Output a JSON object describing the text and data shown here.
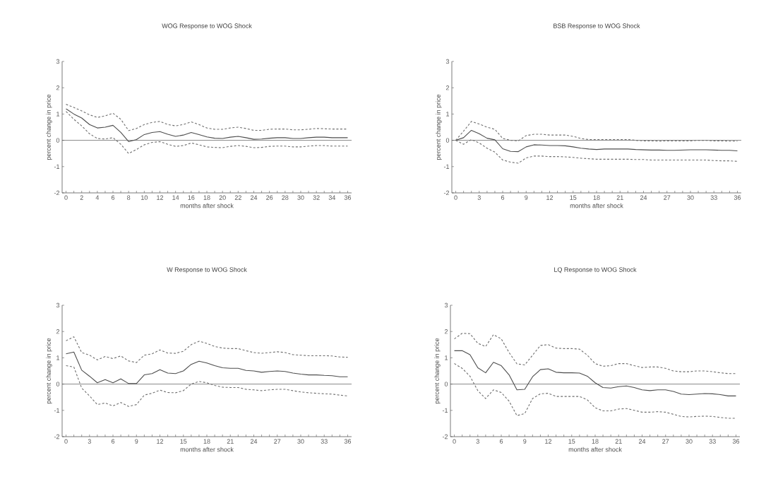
{
  "chart_data": [
    {
      "type": "line",
      "title": "WOG Response to WOG Shock",
      "xlabel": "months after shock",
      "ylabel": "percent change in price",
      "x": [
        0,
        1,
        2,
        3,
        4,
        5,
        6,
        7,
        8,
        9,
        10,
        11,
        12,
        13,
        14,
        15,
        16,
        17,
        18,
        19,
        20,
        21,
        22,
        23,
        24,
        25,
        26,
        27,
        28,
        29,
        30,
        31,
        32,
        33,
        34,
        35,
        36
      ],
      "xlim": [
        -0.5,
        36.5
      ],
      "ylim": [
        -2,
        3
      ],
      "yticks": [
        -2,
        -1,
        0,
        1,
        2,
        3
      ],
      "xticks": [
        0,
        {
          "value": 1,
          "label": null
        },
        2,
        {
          "value": 3,
          "label": null
        },
        4,
        {
          "value": 5,
          "label": null
        },
        6,
        {
          "value": 7,
          "label": null
        },
        8,
        {
          "value": 9,
          "label": null
        },
        10,
        {
          "value": 11,
          "label": null
        },
        12,
        {
          "value": 13,
          "label": null
        },
        14,
        {
          "value": 15,
          "label": null
        },
        16,
        {
          "value": 17,
          "label": null
        },
        18,
        {
          "value": 19,
          "label": null
        },
        20,
        {
          "value": 21,
          "label": null
        },
        22,
        {
          "value": 23,
          "label": null
        },
        24,
        {
          "value": 25,
          "label": null
        },
        26,
        {
          "value": 27,
          "label": null
        },
        28,
        {
          "value": 29,
          "label": null
        },
        30,
        {
          "value": 31,
          "label": null
        },
        32,
        {
          "value": 33,
          "label": null
        },
        34,
        {
          "value": 35,
          "label": null
        },
        36
      ],
      "marker": "none",
      "ref_lines": [
        {
          "axis": "y",
          "value": 0,
          "color": "#555555"
        }
      ],
      "series": [
        {
          "color": "#4d4d4d",
          "line_style": "solid",
          "values": [
            1.2,
            1.0,
            0.85,
            0.6,
            0.47,
            0.5,
            0.57,
            0.3,
            -0.05,
            0.03,
            0.22,
            0.3,
            0.33,
            0.23,
            0.15,
            0.2,
            0.3,
            0.22,
            0.13,
            0.08,
            0.07,
            0.12,
            0.15,
            0.1,
            0.04,
            0.05,
            0.08,
            0.1,
            0.1,
            0.07,
            0.07,
            0.1,
            0.12,
            0.12,
            0.1,
            0.1,
            0.1
          ]
        },
        {
          "color": "#6e6e6e",
          "line_style": "dashed",
          "values": [
            1.37,
            1.25,
            1.12,
            0.97,
            0.87,
            0.93,
            1.03,
            0.8,
            0.37,
            0.45,
            0.6,
            0.68,
            0.72,
            0.6,
            0.55,
            0.6,
            0.7,
            0.6,
            0.47,
            0.42,
            0.42,
            0.47,
            0.5,
            0.45,
            0.38,
            0.38,
            0.42,
            0.43,
            0.43,
            0.4,
            0.4,
            0.42,
            0.45,
            0.44,
            0.43,
            0.43,
            0.43
          ]
        },
        {
          "color": "#6e6e6e",
          "line_style": "dashed",
          "values": [
            1.1,
            0.8,
            0.55,
            0.25,
            0.07,
            0.05,
            0.1,
            -0.15,
            -0.5,
            -0.35,
            -0.17,
            -0.08,
            -0.05,
            -0.15,
            -0.23,
            -0.2,
            -0.1,
            -0.17,
            -0.25,
            -0.27,
            -0.28,
            -0.23,
            -0.2,
            -0.23,
            -0.28,
            -0.27,
            -0.23,
            -0.22,
            -0.22,
            -0.25,
            -0.25,
            -0.22,
            -0.2,
            -0.2,
            -0.22,
            -0.22,
            -0.22
          ]
        }
      ]
    },
    {
      "type": "line",
      "title": "BSB Response to WOG Shock",
      "xlabel": "months after shock",
      "ylabel": "percent change in price",
      "x": [
        0,
        1,
        2,
        3,
        4,
        5,
        6,
        7,
        8,
        9,
        10,
        11,
        12,
        13,
        14,
        15,
        16,
        17,
        18,
        19,
        20,
        21,
        22,
        23,
        24,
        25,
        26,
        27,
        28,
        29,
        30,
        31,
        32,
        33,
        34,
        35,
        36
      ],
      "xlim": [
        -0.5,
        36.5
      ],
      "ylim": [
        -2,
        3
      ],
      "yticks": [
        -2,
        -1,
        0,
        1,
        2,
        3
      ],
      "xticks": [
        0,
        {
          "value": 1,
          "label": null
        },
        {
          "value": 2,
          "label": null
        },
        3,
        {
          "value": 4,
          "label": null
        },
        {
          "value": 5,
          "label": null
        },
        6,
        {
          "value": 7,
          "label": null
        },
        {
          "value": 8,
          "label": null
        },
        9,
        {
          "value": 10,
          "label": null
        },
        {
          "value": 11,
          "label": null
        },
        12,
        {
          "value": 13,
          "label": null
        },
        {
          "value": 14,
          "label": null
        },
        15,
        {
          "value": 16,
          "label": null
        },
        {
          "value": 17,
          "label": null
        },
        18,
        {
          "value": 19,
          "label": null
        },
        {
          "value": 20,
          "label": null
        },
        21,
        {
          "value": 22,
          "label": null
        },
        {
          "value": 23,
          "label": null
        },
        24,
        {
          "value": 25,
          "label": null
        },
        {
          "value": 26,
          "label": null
        },
        27,
        {
          "value": 28,
          "label": null
        },
        {
          "value": 29,
          "label": null
        },
        30,
        {
          "value": 31,
          "label": null
        },
        {
          "value": 32,
          "label": null
        },
        33,
        {
          "value": 34,
          "label": null
        },
        {
          "value": 35,
          "label": null
        },
        36
      ],
      "marker": "none",
      "ref_lines": [
        {
          "axis": "y",
          "value": 0,
          "color": "#555555"
        }
      ],
      "series": [
        {
          "color": "#4d4d4d",
          "line_style": "solid",
          "values": [
            0,
            0.1,
            0.38,
            0.25,
            0.08,
            0.02,
            -0.32,
            -0.42,
            -0.43,
            -0.25,
            -0.17,
            -0.18,
            -0.2,
            -0.2,
            -0.21,
            -0.25,
            -0.3,
            -0.33,
            -0.35,
            -0.33,
            -0.33,
            -0.33,
            -0.33,
            -0.35,
            -0.36,
            -0.37,
            -0.37,
            -0.38,
            -0.38,
            -0.37,
            -0.36,
            -0.36,
            -0.36,
            -0.37,
            -0.38,
            -0.38,
            -0.4
          ]
        },
        {
          "color": "#6e6e6e",
          "line_style": "dashed",
          "values": [
            0,
            0.35,
            0.72,
            0.62,
            0.5,
            0.42,
            0.07,
            0.0,
            -0.02,
            0.18,
            0.23,
            0.23,
            0.2,
            0.2,
            0.2,
            0.15,
            0.07,
            0.03,
            0.03,
            0.03,
            0.03,
            0.03,
            0.03,
            0.0,
            -0.02,
            -0.02,
            -0.03,
            -0.02,
            -0.02,
            -0.02,
            -0.02,
            0,
            0,
            -0.02,
            -0.02,
            -0.03,
            -0.03
          ]
        },
        {
          "color": "#6e6e6e",
          "line_style": "dashed",
          "values": [
            0,
            -0.15,
            0.03,
            -0.1,
            -0.3,
            -0.45,
            -0.75,
            -0.83,
            -0.87,
            -0.67,
            -0.6,
            -0.6,
            -0.62,
            -0.62,
            -0.63,
            -0.65,
            -0.68,
            -0.7,
            -0.72,
            -0.72,
            -0.72,
            -0.72,
            -0.72,
            -0.73,
            -0.73,
            -0.75,
            -0.75,
            -0.75,
            -0.75,
            -0.75,
            -0.75,
            -0.75,
            -0.75,
            -0.77,
            -0.78,
            -0.78,
            -0.8
          ]
        }
      ]
    },
    {
      "type": "line",
      "title": "W Response to WOG Shock",
      "xlabel": "months after shock",
      "ylabel": "percent change in price",
      "x": [
        0,
        1,
        2,
        3,
        4,
        5,
        6,
        7,
        8,
        9,
        10,
        11,
        12,
        13,
        14,
        15,
        16,
        17,
        18,
        19,
        20,
        21,
        22,
        23,
        24,
        25,
        26,
        27,
        28,
        29,
        30,
        31,
        32,
        33,
        34,
        35,
        36
      ],
      "xlim": [
        -0.5,
        36.5
      ],
      "ylim": [
        -2,
        3
      ],
      "yticks": [
        -2,
        -1,
        0,
        1,
        2,
        3
      ],
      "xticks": [
        0,
        {
          "value": 1,
          "label": null
        },
        {
          "value": 2,
          "label": null
        },
        3,
        {
          "value": 4,
          "label": null
        },
        {
          "value": 5,
          "label": null
        },
        6,
        {
          "value": 7,
          "label": null
        },
        {
          "value": 8,
          "label": null
        },
        9,
        {
          "value": 10,
          "label": null
        },
        {
          "value": 11,
          "label": null
        },
        12,
        {
          "value": 13,
          "label": null
        },
        {
          "value": 14,
          "label": null
        },
        15,
        {
          "value": 16,
          "label": null
        },
        {
          "value": 17,
          "label": null
        },
        18,
        {
          "value": 19,
          "label": null
        },
        {
          "value": 20,
          "label": null
        },
        21,
        {
          "value": 22,
          "label": null
        },
        {
          "value": 23,
          "label": null
        },
        24,
        {
          "value": 25,
          "label": null
        },
        {
          "value": 26,
          "label": null
        },
        27,
        {
          "value": 28,
          "label": null
        },
        {
          "value": 29,
          "label": null
        },
        30,
        {
          "value": 31,
          "label": null
        },
        {
          "value": 32,
          "label": null
        },
        33,
        {
          "value": 34,
          "label": null
        },
        {
          "value": 35,
          "label": null
        },
        36
      ],
      "marker": "none",
      "ref_lines": [
        {
          "axis": "y",
          "value": 0,
          "color": "#555555"
        }
      ],
      "series": [
        {
          "color": "#4d4d4d",
          "line_style": "solid",
          "values": [
            1.15,
            1.22,
            0.53,
            0.3,
            0.05,
            0.17,
            0.05,
            0.2,
            0.02,
            0.02,
            0.35,
            0.4,
            0.55,
            0.42,
            0.4,
            0.5,
            0.75,
            0.87,
            0.8,
            0.7,
            0.62,
            0.6,
            0.6,
            0.52,
            0.5,
            0.45,
            0.48,
            0.5,
            0.48,
            0.42,
            0.38,
            0.35,
            0.35,
            0.33,
            0.32,
            0.28,
            0.28
          ]
        },
        {
          "color": "#6e6e6e",
          "line_style": "dashed",
          "values": [
            1.65,
            1.8,
            1.2,
            1.1,
            0.92,
            1.05,
            0.97,
            1.07,
            0.88,
            0.82,
            1.1,
            1.15,
            1.3,
            1.18,
            1.17,
            1.25,
            1.5,
            1.63,
            1.55,
            1.43,
            1.37,
            1.35,
            1.35,
            1.27,
            1.2,
            1.17,
            1.2,
            1.23,
            1.2,
            1.12,
            1.1,
            1.08,
            1.08,
            1.08,
            1.07,
            1.03,
            1.02
          ]
        },
        {
          "color": "#6e6e6e",
          "line_style": "dashed",
          "values": [
            0.7,
            0.65,
            -0.15,
            -0.45,
            -0.78,
            -0.72,
            -0.83,
            -0.7,
            -0.85,
            -0.78,
            -0.42,
            -0.35,
            -0.23,
            -0.32,
            -0.33,
            -0.25,
            0.0,
            0.1,
            0.05,
            -0.05,
            -0.12,
            -0.13,
            -0.13,
            -0.2,
            -0.22,
            -0.25,
            -0.22,
            -0.2,
            -0.2,
            -0.25,
            -0.3,
            -0.33,
            -0.35,
            -0.37,
            -0.38,
            -0.42,
            -0.45
          ]
        }
      ]
    },
    {
      "type": "line",
      "title": "LQ Response to WOG Shock",
      "xlabel": "months after shock",
      "ylabel": "percent change in price",
      "x": [
        0,
        1,
        2,
        3,
        4,
        5,
        6,
        7,
        8,
        9,
        10,
        11,
        12,
        13,
        14,
        15,
        16,
        17,
        18,
        19,
        20,
        21,
        22,
        23,
        24,
        25,
        26,
        27,
        28,
        29,
        30,
        31,
        32,
        33,
        34,
        35,
        36
      ],
      "xlim": [
        -0.5,
        36.5
      ],
      "ylim": [
        -2,
        3
      ],
      "yticks": [
        -2,
        -1,
        0,
        1,
        2,
        3
      ],
      "xticks": [
        0,
        {
          "value": 1,
          "label": null
        },
        {
          "value": 2,
          "label": null
        },
        3,
        {
          "value": 4,
          "label": null
        },
        {
          "value": 5,
          "label": null
        },
        6,
        {
          "value": 7,
          "label": null
        },
        {
          "value": 8,
          "label": null
        },
        9,
        {
          "value": 10,
          "label": null
        },
        {
          "value": 11,
          "label": null
        },
        12,
        {
          "value": 13,
          "label": null
        },
        {
          "value": 14,
          "label": null
        },
        15,
        {
          "value": 16,
          "label": null
        },
        {
          "value": 17,
          "label": null
        },
        18,
        {
          "value": 19,
          "label": null
        },
        {
          "value": 20,
          "label": null
        },
        21,
        {
          "value": 22,
          "label": null
        },
        {
          "value": 23,
          "label": null
        },
        24,
        {
          "value": 25,
          "label": null
        },
        {
          "value": 26,
          "label": null
        },
        27,
        {
          "value": 28,
          "label": null
        },
        {
          "value": 29,
          "label": null
        },
        30,
        {
          "value": 31,
          "label": null
        },
        {
          "value": 32,
          "label": null
        },
        33,
        {
          "value": 34,
          "label": null
        },
        {
          "value": 35,
          "label": null
        },
        36
      ],
      "marker": "none",
      "ref_lines": [
        {
          "axis": "y",
          "value": 0,
          "color": "#555555"
        }
      ],
      "series": [
        {
          "color": "#4d4d4d",
          "line_style": "solid",
          "values": [
            1.27,
            1.27,
            1.12,
            0.62,
            0.43,
            0.83,
            0.7,
            0.35,
            -0.22,
            -0.2,
            0.28,
            0.55,
            0.58,
            0.45,
            0.43,
            0.43,
            0.42,
            0.3,
            0.05,
            -0.13,
            -0.15,
            -0.1,
            -0.07,
            -0.13,
            -0.22,
            -0.25,
            -0.22,
            -0.22,
            -0.28,
            -0.38,
            -0.4,
            -0.38,
            -0.36,
            -0.37,
            -0.4,
            -0.45,
            -0.45
          ]
        },
        {
          "color": "#6e6e6e",
          "line_style": "dashed",
          "values": [
            1.72,
            1.93,
            1.92,
            1.55,
            1.43,
            1.88,
            1.72,
            1.2,
            0.77,
            0.73,
            1.1,
            1.47,
            1.5,
            1.37,
            1.35,
            1.35,
            1.33,
            1.1,
            0.78,
            0.68,
            0.7,
            0.78,
            0.78,
            0.7,
            0.63,
            0.65,
            0.65,
            0.6,
            0.5,
            0.47,
            0.47,
            0.5,
            0.5,
            0.47,
            0.43,
            0.4,
            0.4
          ]
        },
        {
          "color": "#6e6e6e",
          "line_style": "dashed",
          "values": [
            0.78,
            0.6,
            0.3,
            -0.25,
            -0.55,
            -0.22,
            -0.32,
            -0.65,
            -1.2,
            -1.12,
            -0.55,
            -0.37,
            -0.35,
            -0.47,
            -0.47,
            -0.47,
            -0.47,
            -0.6,
            -0.9,
            -1.02,
            -1.02,
            -0.95,
            -0.93,
            -1.0,
            -1.07,
            -1.07,
            -1.05,
            -1.07,
            -1.15,
            -1.23,
            -1.25,
            -1.23,
            -1.22,
            -1.23,
            -1.27,
            -1.3,
            -1.3
          ]
        }
      ]
    }
  ]
}
